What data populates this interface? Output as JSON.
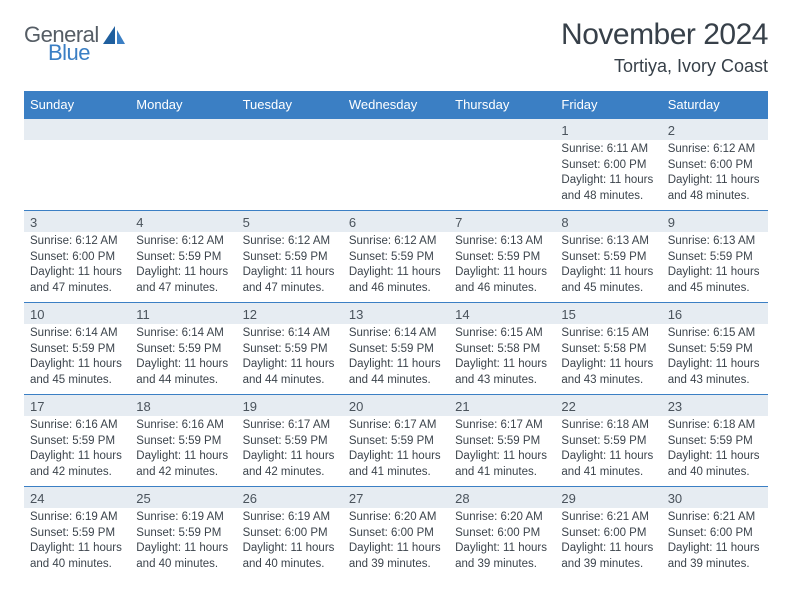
{
  "logo": {
    "word1": "General",
    "word2": "Blue",
    "accent_color": "#3b7fc4",
    "text_color": "#555d65"
  },
  "header": {
    "month_title": "November 2024",
    "location": "Tortiya, Ivory Coast"
  },
  "colors": {
    "header_bg": "#3b7fc4",
    "header_fg": "#ffffff",
    "daynum_bg": "#e6ecf2",
    "body_text": "#3c444c",
    "rule": "#3b7fc4"
  },
  "calendar": {
    "day_names": [
      "Sunday",
      "Monday",
      "Tuesday",
      "Wednesday",
      "Thursday",
      "Friday",
      "Saturday"
    ],
    "weeks": [
      [
        {
          "day": "",
          "lines": [
            "",
            "",
            "",
            ""
          ]
        },
        {
          "day": "",
          "lines": [
            "",
            "",
            "",
            ""
          ]
        },
        {
          "day": "",
          "lines": [
            "",
            "",
            "",
            ""
          ]
        },
        {
          "day": "",
          "lines": [
            "",
            "",
            "",
            ""
          ]
        },
        {
          "day": "",
          "lines": [
            "",
            "",
            "",
            ""
          ]
        },
        {
          "day": "1",
          "lines": [
            "Sunrise: 6:11 AM",
            "Sunset: 6:00 PM",
            "Daylight: 11 hours",
            "and 48 minutes."
          ]
        },
        {
          "day": "2",
          "lines": [
            "Sunrise: 6:12 AM",
            "Sunset: 6:00 PM",
            "Daylight: 11 hours",
            "and 48 minutes."
          ]
        }
      ],
      [
        {
          "day": "3",
          "lines": [
            "Sunrise: 6:12 AM",
            "Sunset: 6:00 PM",
            "Daylight: 11 hours",
            "and 47 minutes."
          ]
        },
        {
          "day": "4",
          "lines": [
            "Sunrise: 6:12 AM",
            "Sunset: 5:59 PM",
            "Daylight: 11 hours",
            "and 47 minutes."
          ]
        },
        {
          "day": "5",
          "lines": [
            "Sunrise: 6:12 AM",
            "Sunset: 5:59 PM",
            "Daylight: 11 hours",
            "and 47 minutes."
          ]
        },
        {
          "day": "6",
          "lines": [
            "Sunrise: 6:12 AM",
            "Sunset: 5:59 PM",
            "Daylight: 11 hours",
            "and 46 minutes."
          ]
        },
        {
          "day": "7",
          "lines": [
            "Sunrise: 6:13 AM",
            "Sunset: 5:59 PM",
            "Daylight: 11 hours",
            "and 46 minutes."
          ]
        },
        {
          "day": "8",
          "lines": [
            "Sunrise: 6:13 AM",
            "Sunset: 5:59 PM",
            "Daylight: 11 hours",
            "and 45 minutes."
          ]
        },
        {
          "day": "9",
          "lines": [
            "Sunrise: 6:13 AM",
            "Sunset: 5:59 PM",
            "Daylight: 11 hours",
            "and 45 minutes."
          ]
        }
      ],
      [
        {
          "day": "10",
          "lines": [
            "Sunrise: 6:14 AM",
            "Sunset: 5:59 PM",
            "Daylight: 11 hours",
            "and 45 minutes."
          ]
        },
        {
          "day": "11",
          "lines": [
            "Sunrise: 6:14 AM",
            "Sunset: 5:59 PM",
            "Daylight: 11 hours",
            "and 44 minutes."
          ]
        },
        {
          "day": "12",
          "lines": [
            "Sunrise: 6:14 AM",
            "Sunset: 5:59 PM",
            "Daylight: 11 hours",
            "and 44 minutes."
          ]
        },
        {
          "day": "13",
          "lines": [
            "Sunrise: 6:14 AM",
            "Sunset: 5:59 PM",
            "Daylight: 11 hours",
            "and 44 minutes."
          ]
        },
        {
          "day": "14",
          "lines": [
            "Sunrise: 6:15 AM",
            "Sunset: 5:58 PM",
            "Daylight: 11 hours",
            "and 43 minutes."
          ]
        },
        {
          "day": "15",
          "lines": [
            "Sunrise: 6:15 AM",
            "Sunset: 5:58 PM",
            "Daylight: 11 hours",
            "and 43 minutes."
          ]
        },
        {
          "day": "16",
          "lines": [
            "Sunrise: 6:15 AM",
            "Sunset: 5:59 PM",
            "Daylight: 11 hours",
            "and 43 minutes."
          ]
        }
      ],
      [
        {
          "day": "17",
          "lines": [
            "Sunrise: 6:16 AM",
            "Sunset: 5:59 PM",
            "Daylight: 11 hours",
            "and 42 minutes."
          ]
        },
        {
          "day": "18",
          "lines": [
            "Sunrise: 6:16 AM",
            "Sunset: 5:59 PM",
            "Daylight: 11 hours",
            "and 42 minutes."
          ]
        },
        {
          "day": "19",
          "lines": [
            "Sunrise: 6:17 AM",
            "Sunset: 5:59 PM",
            "Daylight: 11 hours",
            "and 42 minutes."
          ]
        },
        {
          "day": "20",
          "lines": [
            "Sunrise: 6:17 AM",
            "Sunset: 5:59 PM",
            "Daylight: 11 hours",
            "and 41 minutes."
          ]
        },
        {
          "day": "21",
          "lines": [
            "Sunrise: 6:17 AM",
            "Sunset: 5:59 PM",
            "Daylight: 11 hours",
            "and 41 minutes."
          ]
        },
        {
          "day": "22",
          "lines": [
            "Sunrise: 6:18 AM",
            "Sunset: 5:59 PM",
            "Daylight: 11 hours",
            "and 41 minutes."
          ]
        },
        {
          "day": "23",
          "lines": [
            "Sunrise: 6:18 AM",
            "Sunset: 5:59 PM",
            "Daylight: 11 hours",
            "and 40 minutes."
          ]
        }
      ],
      [
        {
          "day": "24",
          "lines": [
            "Sunrise: 6:19 AM",
            "Sunset: 5:59 PM",
            "Daylight: 11 hours",
            "and 40 minutes."
          ]
        },
        {
          "day": "25",
          "lines": [
            "Sunrise: 6:19 AM",
            "Sunset: 5:59 PM",
            "Daylight: 11 hours",
            "and 40 minutes."
          ]
        },
        {
          "day": "26",
          "lines": [
            "Sunrise: 6:19 AM",
            "Sunset: 6:00 PM",
            "Daylight: 11 hours",
            "and 40 minutes."
          ]
        },
        {
          "day": "27",
          "lines": [
            "Sunrise: 6:20 AM",
            "Sunset: 6:00 PM",
            "Daylight: 11 hours",
            "and 39 minutes."
          ]
        },
        {
          "day": "28",
          "lines": [
            "Sunrise: 6:20 AM",
            "Sunset: 6:00 PM",
            "Daylight: 11 hours",
            "and 39 minutes."
          ]
        },
        {
          "day": "29",
          "lines": [
            "Sunrise: 6:21 AM",
            "Sunset: 6:00 PM",
            "Daylight: 11 hours",
            "and 39 minutes."
          ]
        },
        {
          "day": "30",
          "lines": [
            "Sunrise: 6:21 AM",
            "Sunset: 6:00 PM",
            "Daylight: 11 hours",
            "and 39 minutes."
          ]
        }
      ]
    ]
  }
}
